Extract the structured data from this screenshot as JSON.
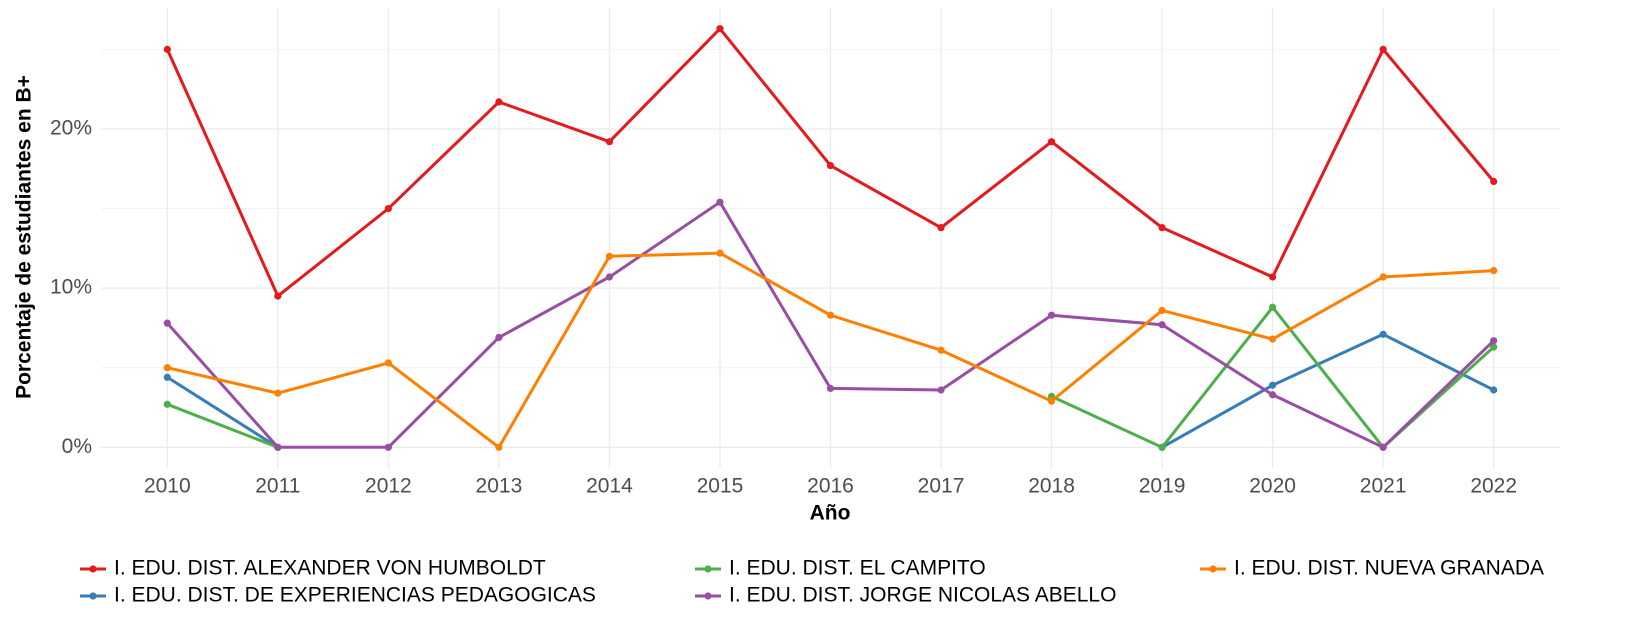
{
  "chart_data": {
    "type": "line",
    "x_label": "Año",
    "y_label": "Porcentaje de estudiantes en B+",
    "x": [
      2010,
      2011,
      2012,
      2013,
      2014,
      2015,
      2016,
      2017,
      2018,
      2019,
      2020,
      2021,
      2022
    ],
    "xlim": [
      2009.4,
      2022.6
    ],
    "xticks": [
      2010,
      2011,
      2012,
      2013,
      2014,
      2015,
      2016,
      2017,
      2018,
      2019,
      2020,
      2021,
      2022
    ],
    "ylim": [
      -1.3,
      27.6
    ],
    "yticks": [
      {
        "value": 0,
        "label": "0%"
      },
      {
        "value": 10,
        "label": "10%"
      },
      {
        "value": 20,
        "label": "20%"
      }
    ],
    "minor_yticks": [
      5,
      15,
      25
    ],
    "grid": true,
    "legend_position": "bottom",
    "series": [
      {
        "name": "I. EDU. DIST. ALEXANDER VON HUMBOLDT",
        "color": "#e41a1c",
        "values": [
          25.0,
          9.5,
          15.0,
          21.7,
          19.2,
          26.3,
          17.7,
          13.8,
          19.2,
          13.8,
          10.7,
          25.0,
          16.7
        ]
      },
      {
        "name": "I. EDU. DIST. DE EXPERIENCIAS PEDAGOGICAS",
        "color": "#377eb8",
        "values": [
          4.4,
          0,
          null,
          null,
          null,
          null,
          null,
          null,
          null,
          0,
          3.9,
          7.1,
          3.6
        ]
      },
      {
        "name": "I. EDU. DIST. EL CAMPITO",
        "color": "#4daf4a",
        "values": [
          2.7,
          0,
          null,
          null,
          null,
          null,
          null,
          null,
          3.2,
          0,
          8.8,
          0,
          6.3
        ]
      },
      {
        "name": "I. EDU. DIST. JORGE NICOLAS ABELLO",
        "color": "#984ea3",
        "values": [
          7.8,
          0,
          0,
          6.9,
          10.7,
          15.4,
          3.7,
          3.6,
          8.3,
          7.7,
          3.3,
          0,
          6.7
        ]
      },
      {
        "name": "I. EDU. DIST. NUEVA GRANADA",
        "color": "#ff7f00",
        "values": [
          5.0,
          3.4,
          5.3,
          0,
          12.0,
          12.2,
          8.3,
          6.1,
          2.9,
          8.6,
          6.8,
          10.7,
          11.1
        ]
      }
    ]
  }
}
